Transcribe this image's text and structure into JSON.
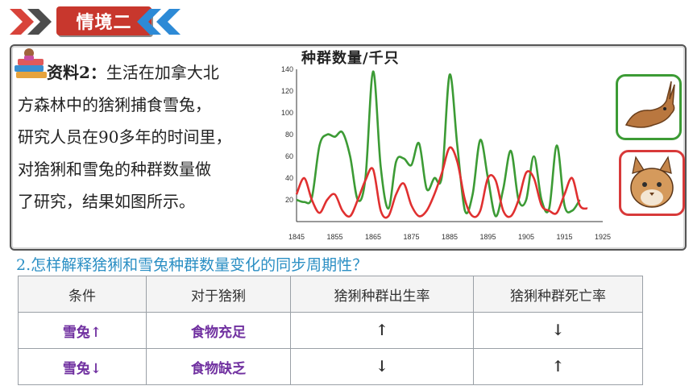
{
  "header": {
    "title": "情境二"
  },
  "material": {
    "label": "资料2：",
    "lines": [
      "生活在加拿大北",
      "方森林中的猞猁捕食雪兔，",
      "研究人员在90多年的时间里，",
      "对猞猁和雪兔的种群数量做",
      "了研究，结果如图所示。"
    ]
  },
  "chart_data": {
    "type": "line",
    "title": "种群数量/千只",
    "x_ticks": [
      "1845",
      "1855",
      "1865",
      "1875",
      "1885",
      "1895",
      "1905",
      "1915",
      "1925"
    ],
    "y_ticks": [
      "20",
      "40",
      "60",
      "80",
      "100",
      "120",
      "140"
    ],
    "xlim": [
      1845,
      1925
    ],
    "ylim": [
      0,
      140
    ],
    "colors": {
      "hare": "#3c9b35",
      "lynx": "#e03030"
    },
    "series": [
      {
        "key": "hare",
        "x": [
          1845,
          1847,
          1849,
          1851,
          1853,
          1855,
          1857,
          1859,
          1861,
          1863,
          1865,
          1867,
          1869,
          1871,
          1873,
          1875,
          1877,
          1879,
          1881,
          1883,
          1885,
          1887,
          1889,
          1891,
          1893,
          1895,
          1897,
          1899,
          1901,
          1903,
          1905,
          1907,
          1909,
          1911,
          1913,
          1915,
          1917,
          1919
        ],
        "y": [
          20,
          18,
          22,
          70,
          80,
          78,
          82,
          60,
          20,
          40,
          138,
          50,
          12,
          55,
          58,
          52,
          72,
          30,
          40,
          42,
          135,
          70,
          10,
          25,
          75,
          40,
          5,
          30,
          65,
          20,
          20,
          60,
          20,
          12,
          70,
          15,
          10,
          20
        ]
      },
      {
        "key": "lynx",
        "x": [
          1845,
          1847,
          1849,
          1851,
          1853,
          1855,
          1857,
          1859,
          1861,
          1863,
          1865,
          1867,
          1869,
          1871,
          1873,
          1875,
          1877,
          1879,
          1881,
          1883,
          1885,
          1887,
          1889,
          1891,
          1893,
          1895,
          1897,
          1899,
          1901,
          1903,
          1905,
          1907,
          1909,
          1911,
          1913,
          1915,
          1917,
          1919,
          1921
        ],
        "y": [
          25,
          40,
          20,
          8,
          20,
          25,
          10,
          5,
          20,
          38,
          48,
          10,
          5,
          25,
          35,
          15,
          5,
          10,
          25,
          45,
          68,
          55,
          20,
          5,
          10,
          40,
          38,
          10,
          5,
          20,
          45,
          40,
          15,
          10,
          8,
          25,
          40,
          15,
          12
        ]
      }
    ]
  },
  "question": "2.怎样解释猞猁和雪兔种群数量变化的同步周期性？",
  "table": {
    "headers": [
      "条件",
      "对于猞猁",
      "猞猁种群出生率",
      "猞猁种群死亡率"
    ],
    "rows": [
      [
        "雪兔↑",
        "食物充足",
        "↑",
        "↓"
      ],
      [
        "雪兔↓",
        "食物缺乏",
        "↓",
        "↑"
      ]
    ]
  }
}
